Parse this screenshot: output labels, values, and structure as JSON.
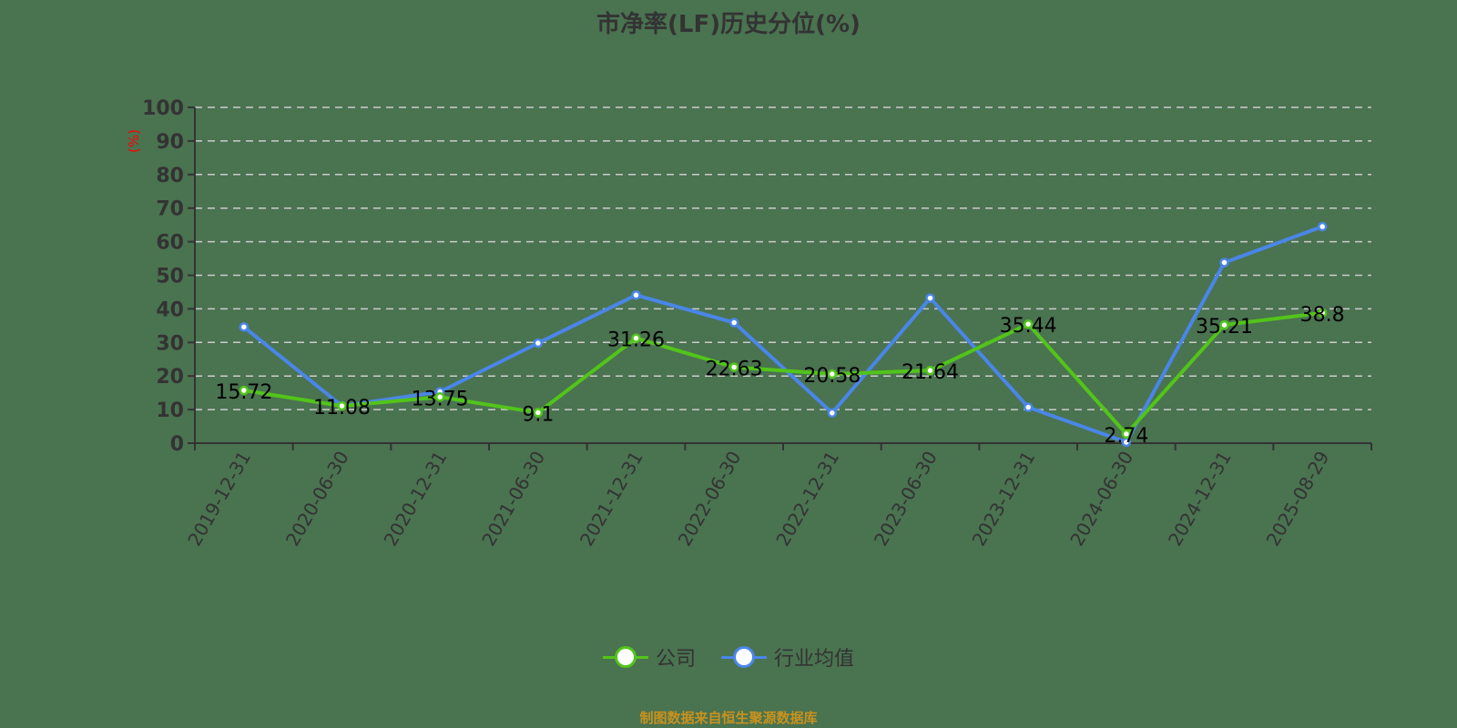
{
  "title": "市净率(LF)历史分位(%)",
  "source_note": "制图数据来自恒生聚源数据库",
  "legend": [
    {
      "label": "公司",
      "color": "#52c41a"
    },
    {
      "label": "行业均值",
      "color": "#4a86e8"
    }
  ],
  "colors": {
    "background": "#4a7350",
    "company": "#52c41a",
    "industry": "#4a86e8",
    "axis": "#333333",
    "grid": "#cccccc",
    "unit": "#ff0000"
  },
  "chart_data": {
    "type": "line",
    "title": "市净率(LF)历史分位(%)",
    "xlabel": "",
    "ylabel": "(%)",
    "ylim": [
      0,
      100
    ],
    "yticks": [
      0,
      10,
      20,
      30,
      40,
      50,
      60,
      70,
      80,
      90,
      100
    ],
    "grid": true,
    "legend_position": "bottom",
    "categories": [
      "2019-12-31",
      "2020-06-30",
      "2020-12-31",
      "2021-06-30",
      "2021-12-31",
      "2022-06-30",
      "2022-12-31",
      "2023-06-30",
      "2023-12-31",
      "2024-06-30",
      "2024-12-31",
      "2025-08-29"
    ],
    "series": [
      {
        "name": "公司",
        "color": "#52c41a",
        "values": [
          15.72,
          11.08,
          13.75,
          9.1,
          31.26,
          22.63,
          20.58,
          21.64,
          35.44,
          2.74,
          35.21,
          38.8
        ],
        "labels_shown": true
      },
      {
        "name": "行业均值",
        "color": "#4a86e8",
        "values": [
          34.6,
          11.1,
          15.3,
          29.8,
          44.1,
          35.9,
          9.0,
          43.2,
          10.7,
          0.3,
          53.8,
          64.5
        ],
        "labels_shown": false
      }
    ]
  }
}
